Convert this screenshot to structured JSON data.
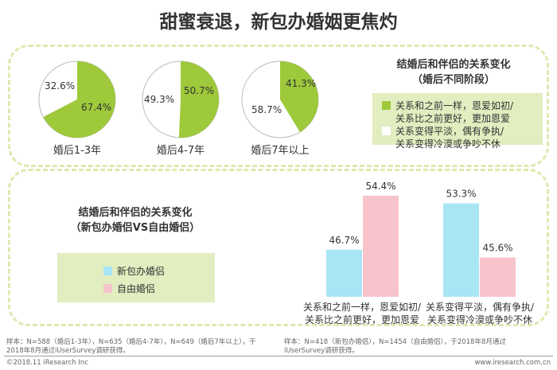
{
  "title": "甜蜜衰退，新包办婚姻更焦灼",
  "colors": {
    "green": "#9dc93a",
    "white": "#ffffff",
    "cyan": "#a8e6f5",
    "pink": "#f7c4cb",
    "legend_bg": "#e2edc0"
  },
  "chart_data": [
    {
      "type": "pie",
      "categories": [
        "婚后1-3年",
        "婚后4-7年",
        "婚后7年以上"
      ],
      "series": [
        {
          "name": "关系和之前一样，恩爱如初/关系比之前更好，更加恩爱",
          "values": [
            67.4,
            50.7,
            41.3
          ]
        },
        {
          "name": "关系变得平淡，偶有争执/关系变得冷漠或争吵不休",
          "values": [
            32.6,
            49.3,
            58.7
          ]
        }
      ],
      "labels": [
        [
          "67.4%",
          "32.6%"
        ],
        [
          "50.7%",
          "49.3%"
        ],
        [
          "41.3%",
          "58.7%"
        ]
      ],
      "title": "结婚后和伴侣的关系变化",
      "subtitle": "（婚后不同阶段）",
      "legend": [
        "关系和之前一样，恩爱如初/",
        "关系比之前更好，更加恩爱",
        "关系变得平淡，偶有争执/",
        "关系变得冷漠或争吵不休"
      ]
    },
    {
      "type": "bar",
      "categories": [
        [
          "关系和之前一样，恩爱如初/",
          "关系比之前更好，更加恩爱"
        ],
        [
          "关系变得平淡，偶有争执/",
          "关系变得冷漠或争吵不休"
        ]
      ],
      "series": [
        {
          "name": "新包办婚侣",
          "values": [
            46.7,
            53.3
          ]
        },
        {
          "name": "自由婚侣",
          "values": [
            54.4,
            45.6
          ]
        }
      ],
      "labels": [
        [
          "46.7%",
          "53.3%"
        ],
        [
          "54.4%",
          "45.6%"
        ]
      ],
      "title": "结婚后和伴侣的关系变化",
      "subtitle": "（新包办婚侣VS自由婚侣）",
      "ylim": [
        40,
        56
      ]
    }
  ],
  "notes": {
    "left": [
      "样本：N=588（婚后1-3年），N=635（婚后4-7年），N=649（婚后7年以上），于",
      "2018年8月通过iUserSurvey调研获得。"
    ],
    "right": [
      "样本：N=418（新包办婚侣），N=1454（自由婚侣），于2018年8月通过",
      "iUserSurvey调研获得。"
    ]
  },
  "footer": {
    "copyright": "©2018.11 iResearch Inc",
    "url": "www.iresearch.com.cn"
  }
}
